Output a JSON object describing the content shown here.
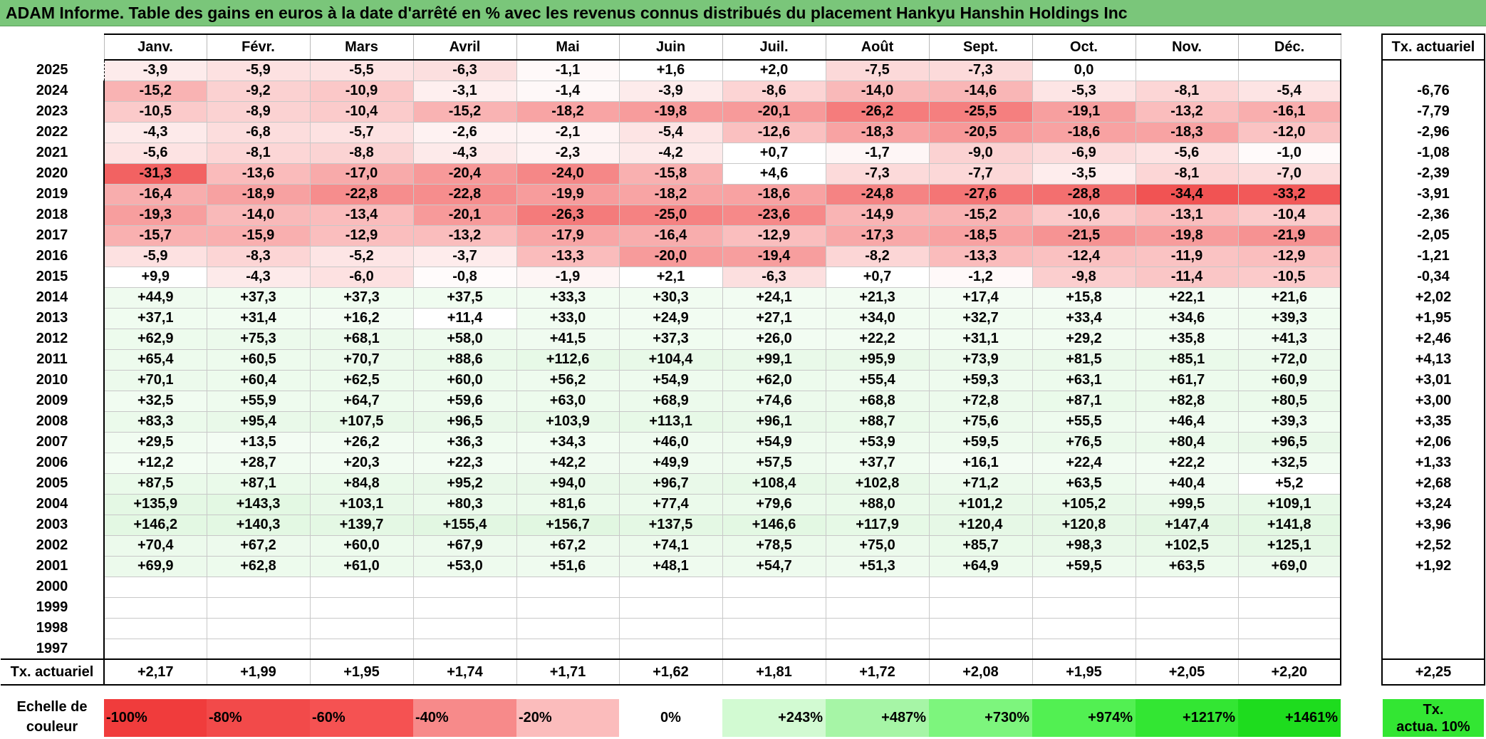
{
  "title": "ADAM Informe. Table des gains en euros à la date d'arrêté en % avec les revenus connus distribués du placement Hankyu Hanshin Holdings Inc",
  "months": [
    "Janv.",
    "Févr.",
    "Mars",
    "Avril",
    "Mai",
    "Juin",
    "Juil.",
    "Août",
    "Sept.",
    "Oct.",
    "Nov.",
    "Déc."
  ],
  "rate_header": "Tx. actuariel",
  "rows": [
    {
      "year": "2025",
      "values": [
        "-3,9",
        "-5,9",
        "-5,5",
        "-6,3",
        "-1,1",
        "+1,6",
        "+2,0",
        "-7,5",
        "-7,3",
        "0,0",
        "",
        ""
      ],
      "rate": ""
    },
    {
      "year": "2024",
      "values": [
        "-15,2",
        "-9,2",
        "-10,9",
        "-3,1",
        "-1,4",
        "-3,9",
        "-8,6",
        "-14,0",
        "-14,6",
        "-5,3",
        "-8,1",
        "-5,4"
      ],
      "rate": "-6,76"
    },
    {
      "year": "2023",
      "values": [
        "-10,5",
        "-8,9",
        "-10,4",
        "-15,2",
        "-18,2",
        "-19,8",
        "-20,1",
        "-26,2",
        "-25,5",
        "-19,1",
        "-13,2",
        "-16,1"
      ],
      "rate": "-7,79"
    },
    {
      "year": "2022",
      "values": [
        "-4,3",
        "-6,8",
        "-5,7",
        "-2,6",
        "-2,1",
        "-5,4",
        "-12,6",
        "-18,3",
        "-20,5",
        "-18,6",
        "-18,3",
        "-12,0"
      ],
      "rate": "-2,96"
    },
    {
      "year": "2021",
      "values": [
        "-5,6",
        "-8,1",
        "-8,8",
        "-4,3",
        "-2,3",
        "-4,2",
        "+0,7",
        "-1,7",
        "-9,0",
        "-6,9",
        "-5,6",
        "-1,0"
      ],
      "rate": "-1,08"
    },
    {
      "year": "2020",
      "values": [
        "-31,3",
        "-13,6",
        "-17,0",
        "-20,4",
        "-24,0",
        "-15,8",
        "+4,6",
        "-7,3",
        "-7,7",
        "-3,5",
        "-8,1",
        "-7,0"
      ],
      "rate": "-2,39"
    },
    {
      "year": "2019",
      "values": [
        "-16,4",
        "-18,9",
        "-22,8",
        "-22,8",
        "-19,9",
        "-18,2",
        "-18,6",
        "-24,8",
        "-27,6",
        "-28,8",
        "-34,4",
        "-33,2"
      ],
      "rate": "-3,91"
    },
    {
      "year": "2018",
      "values": [
        "-19,3",
        "-14,0",
        "-13,4",
        "-20,1",
        "-26,3",
        "-25,0",
        "-23,6",
        "-14,9",
        "-15,2",
        "-10,6",
        "-13,1",
        "-10,4"
      ],
      "rate": "-2,36"
    },
    {
      "year": "2017",
      "values": [
        "-15,7",
        "-15,9",
        "-12,9",
        "-13,2",
        "-17,9",
        "-16,4",
        "-12,9",
        "-17,3",
        "-18,5",
        "-21,5",
        "-19,8",
        "-21,9"
      ],
      "rate": "-2,05"
    },
    {
      "year": "2016",
      "values": [
        "-5,9",
        "-8,3",
        "-5,2",
        "-3,7",
        "-13,3",
        "-20,0",
        "-19,4",
        "-8,2",
        "-13,3",
        "-12,4",
        "-11,9",
        "-12,9"
      ],
      "rate": "-1,21"
    },
    {
      "year": "2015",
      "values": [
        "+9,9",
        "-4,3",
        "-6,0",
        "-0,8",
        "-1,9",
        "+2,1",
        "-6,3",
        "+0,7",
        "-1,2",
        "-9,8",
        "-11,4",
        "-10,5"
      ],
      "rate": "-0,34"
    },
    {
      "year": "2014",
      "values": [
        "+44,9",
        "+37,3",
        "+37,3",
        "+37,5",
        "+33,3",
        "+30,3",
        "+24,1",
        "+21,3",
        "+17,4",
        "+15,8",
        "+22,1",
        "+21,6"
      ],
      "rate": "+2,02"
    },
    {
      "year": "2013",
      "values": [
        "+37,1",
        "+31,4",
        "+16,2",
        "+11,4",
        "+33,0",
        "+24,9",
        "+27,1",
        "+34,0",
        "+32,7",
        "+33,4",
        "+34,6",
        "+39,3"
      ],
      "rate": "+1,95"
    },
    {
      "year": "2012",
      "values": [
        "+62,9",
        "+75,3",
        "+68,1",
        "+58,0",
        "+41,5",
        "+37,3",
        "+26,0",
        "+22,2",
        "+31,1",
        "+29,2",
        "+35,8",
        "+41,3"
      ],
      "rate": "+2,46"
    },
    {
      "year": "2011",
      "values": [
        "+65,4",
        "+60,5",
        "+70,7",
        "+88,6",
        "+112,6",
        "+104,4",
        "+99,1",
        "+95,9",
        "+73,9",
        "+81,5",
        "+85,1",
        "+72,0"
      ],
      "rate": "+4,13"
    },
    {
      "year": "2010",
      "values": [
        "+70,1",
        "+60,4",
        "+62,5",
        "+60,0",
        "+56,2",
        "+54,9",
        "+62,0",
        "+55,4",
        "+59,3",
        "+63,1",
        "+61,7",
        "+60,9"
      ],
      "rate": "+3,01"
    },
    {
      "year": "2009",
      "values": [
        "+32,5",
        "+55,9",
        "+64,7",
        "+59,6",
        "+63,0",
        "+68,9",
        "+74,6",
        "+68,8",
        "+72,8",
        "+87,1",
        "+82,8",
        "+80,5"
      ],
      "rate": "+3,00"
    },
    {
      "year": "2008",
      "values": [
        "+83,3",
        "+95,4",
        "+107,5",
        "+96,5",
        "+103,9",
        "+113,1",
        "+96,1",
        "+88,7",
        "+75,6",
        "+55,5",
        "+46,4",
        "+39,3"
      ],
      "rate": "+3,35"
    },
    {
      "year": "2007",
      "values": [
        "+29,5",
        "+13,5",
        "+26,2",
        "+36,3",
        "+34,3",
        "+46,0",
        "+54,9",
        "+53,9",
        "+59,5",
        "+76,5",
        "+80,4",
        "+96,5"
      ],
      "rate": "+2,06"
    },
    {
      "year": "2006",
      "values": [
        "+12,2",
        "+28,7",
        "+20,3",
        "+22,3",
        "+42,2",
        "+49,9",
        "+57,5",
        "+37,7",
        "+16,1",
        "+22,4",
        "+22,2",
        "+32,5"
      ],
      "rate": "+1,33"
    },
    {
      "year": "2005",
      "values": [
        "+87,5",
        "+87,1",
        "+84,8",
        "+95,2",
        "+94,0",
        "+96,7",
        "+108,4",
        "+102,8",
        "+71,2",
        "+63,5",
        "+40,4",
        "+5,2"
      ],
      "rate": "+2,68"
    },
    {
      "year": "2004",
      "values": [
        "+135,9",
        "+143,3",
        "+103,1",
        "+80,3",
        "+81,6",
        "+77,4",
        "+79,6",
        "+88,0",
        "+101,2",
        "+105,2",
        "+99,5",
        "+109,1"
      ],
      "rate": "+3,24"
    },
    {
      "year": "2003",
      "values": [
        "+146,2",
        "+140,3",
        "+139,7",
        "+155,4",
        "+156,7",
        "+137,5",
        "+146,6",
        "+117,9",
        "+120,4",
        "+120,8",
        "+147,4",
        "+141,8"
      ],
      "rate": "+3,96"
    },
    {
      "year": "2002",
      "values": [
        "+70,4",
        "+67,2",
        "+60,0",
        "+67,9",
        "+67,2",
        "+74,1",
        "+78,5",
        "+75,0",
        "+85,7",
        "+98,3",
        "+102,5",
        "+125,1"
      ],
      "rate": "+2,52"
    },
    {
      "year": "2001",
      "values": [
        "+69,9",
        "+62,8",
        "+61,0",
        "+53,0",
        "+51,6",
        "+48,1",
        "+54,7",
        "+51,3",
        "+64,9",
        "+59,5",
        "+63,5",
        "+69,0"
      ],
      "rate": "+1,92"
    },
    {
      "year": "2000",
      "values": [
        "",
        "",
        "",
        "",
        "",
        "",
        "",
        "",
        "",
        "",
        "",
        ""
      ],
      "rate": ""
    },
    {
      "year": "1999",
      "values": [
        "",
        "",
        "",
        "",
        "",
        "",
        "",
        "",
        "",
        "",
        "",
        ""
      ],
      "rate": ""
    },
    {
      "year": "1998",
      "values": [
        "",
        "",
        "",
        "",
        "",
        "",
        "",
        "",
        "",
        "",
        "",
        ""
      ],
      "rate": ""
    },
    {
      "year": "1997",
      "values": [
        "",
        "",
        "",
        "",
        "",
        "",
        "",
        "",
        "",
        "",
        "",
        ""
      ],
      "rate": ""
    }
  ],
  "avg_row": {
    "label": "Tx. actuariel",
    "values": [
      "+2,17",
      "+1,99",
      "+1,95",
      "+1,74",
      "+1,71",
      "+1,62",
      "+1,81",
      "+1,72",
      "+2,08",
      "+1,95",
      "+2,05",
      "+2,20"
    ],
    "rate": "+2,25"
  },
  "scale": {
    "label_line1": "Echelle de",
    "label_line2": "couleur",
    "cells": [
      {
        "text": "-100%",
        "color": "#f03c3c",
        "kind": "neg"
      },
      {
        "text": "-80%",
        "color": "#f24a4a",
        "kind": "neg"
      },
      {
        "text": "-60%",
        "color": "#f55252",
        "kind": "neg"
      },
      {
        "text": "-40%",
        "color": "#f78a8a",
        "kind": "neg"
      },
      {
        "text": "-20%",
        "color": "#fbbcbc",
        "kind": "neg"
      },
      {
        "text": "0%",
        "color": "#ffffff",
        "kind": "zero"
      },
      {
        "text": "+243%",
        "color": "#d2fad2",
        "kind": "pos"
      },
      {
        "text": "+487%",
        "color": "#a6f5a6",
        "kind": "pos"
      },
      {
        "text": "+730%",
        "color": "#7df57d",
        "kind": "pos"
      },
      {
        "text": "+974%",
        "color": "#52f052",
        "kind": "pos"
      },
      {
        "text": "+1217%",
        "color": "#33e633",
        "kind": "pos"
      },
      {
        "text": "+1461%",
        "color": "#1edc1e",
        "kind": "pos"
      }
    ],
    "rate_line1": "Tx.",
    "rate_line2": "actua. 10%",
    "rate_color": "#33e633"
  },
  "colors": {
    "title_bg": "#7ac67a",
    "negative_max": "#f03c3c",
    "positive_tint": "#e8fae8"
  }
}
